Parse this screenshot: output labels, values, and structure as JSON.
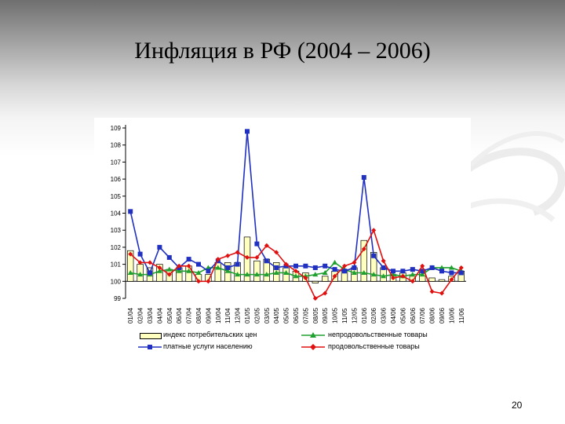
{
  "slide": {
    "title": "Инфляция в РФ (2004 – 2006)",
    "page_number": "20"
  },
  "chart_data": {
    "type": "line",
    "title": "",
    "ylim": [
      99,
      109
    ],
    "yticks": [
      "99",
      "100",
      "101",
      "102",
      "103",
      "104",
      "105",
      "106",
      "107",
      "108",
      "109"
    ],
    "categories": [
      "01/04",
      "02/04",
      "03/04",
      "04/04",
      "05/04",
      "06/04",
      "07/04",
      "08/04",
      "09/04",
      "10/04",
      "11/04",
      "12/04",
      "01/05",
      "02/05",
      "03/05",
      "04/05",
      "05/05",
      "06/05",
      "07/05",
      "08/05",
      "09/05",
      "10/05",
      "11/05",
      "12/05",
      "01/06",
      "02/06",
      "03/06",
      "04/06",
      "05/06",
      "06/06",
      "07/06",
      "08/06",
      "09/06",
      "10/06",
      "11/06"
    ],
    "series": [
      {
        "name": "индекс потребительских цен",
        "kind": "bar",
        "color": "#ffffc0",
        "stroke": "#000000",
        "values": [
          101.8,
          101.0,
          100.8,
          101.0,
          100.7,
          100.8,
          100.9,
          100.4,
          100.4,
          101.1,
          101.1,
          101.1,
          102.6,
          101.2,
          101.3,
          101.1,
          100.8,
          100.6,
          100.5,
          99.9,
          100.3,
          100.6,
          100.7,
          100.8,
          102.4,
          101.7,
          100.8,
          100.4,
          100.5,
          100.3,
          100.7,
          100.2,
          100.1,
          100.3,
          100.6
        ]
      },
      {
        "name": "непродовольственные товары",
        "kind": "line",
        "color": "#20a030",
        "marker": "triangle",
        "values": [
          100.5,
          100.4,
          100.4,
          100.6,
          100.7,
          100.6,
          100.6,
          100.5,
          100.8,
          100.8,
          100.6,
          100.4,
          100.4,
          100.4,
          100.4,
          100.5,
          100.5,
          100.3,
          100.3,
          100.4,
          100.5,
          101.1,
          100.7,
          100.5,
          100.5,
          100.4,
          100.3,
          100.4,
          100.3,
          100.4,
          100.4,
          100.8,
          100.8,
          100.8,
          100.6
        ]
      },
      {
        "name": "платные услуги населению",
        "kind": "line",
        "color": "#2030c0",
        "marker": "square",
        "values": [
          104.1,
          101.6,
          100.5,
          102.0,
          101.4,
          100.8,
          101.3,
          101.0,
          100.6,
          101.2,
          100.8,
          101.0,
          108.8,
          102.2,
          101.2,
          100.8,
          100.9,
          100.9,
          100.9,
          100.8,
          100.9,
          100.7,
          100.6,
          100.8,
          106.1,
          101.5,
          100.8,
          100.6,
          100.6,
          100.7,
          100.6,
          100.8,
          100.6,
          100.5,
          100.5
        ]
      },
      {
        "name": "продовольственные товары",
        "kind": "line",
        "color": "#e01010",
        "marker": "diamond",
        "values": [
          101.6,
          101.1,
          101.1,
          100.8,
          100.4,
          100.9,
          100.9,
          100.0,
          100.0,
          101.3,
          101.5,
          101.7,
          101.4,
          101.4,
          102.1,
          101.7,
          101.0,
          100.6,
          100.2,
          99.0,
          99.3,
          100.3,
          100.9,
          101.1,
          101.9,
          103.0,
          101.2,
          100.2,
          100.3,
          100.0,
          100.9,
          99.4,
          99.3,
          100.1,
          100.8
        ]
      }
    ],
    "legend": {
      "placement": "bottom",
      "items": [
        {
          "label": "индекс потребительских цен",
          "series": 0
        },
        {
          "label": "непродовольственные товары",
          "series": 1
        },
        {
          "label": "платные услуги населению",
          "series": 2
        },
        {
          "label": "продовольственные товары",
          "series": 3
        }
      ]
    },
    "grid": false
  }
}
